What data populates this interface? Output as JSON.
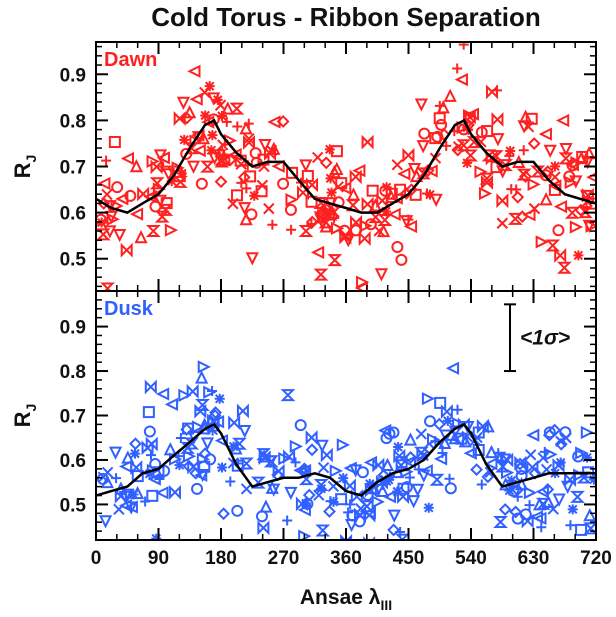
{
  "chart_data": {
    "type": "scatter",
    "title": "Cold Torus - Ribbon Separation",
    "xlabel": "Ansae λ",
    "xlabel_subscript": "III",
    "x_ticks": [
      0,
      90,
      180,
      270,
      360,
      450,
      540,
      630,
      720
    ],
    "xlim": [
      0,
      720
    ],
    "panels": [
      {
        "label": "Dawn",
        "color": "#ff2020",
        "ylabel": "R",
        "ylabel_subscript": "J",
        "ylim": [
          0.43,
          0.97
        ],
        "y_ticks": [
          0.5,
          0.6,
          0.7,
          0.8,
          0.9
        ],
        "mean_curve": {
          "x": [
            0,
            22,
            45,
            67,
            90,
            112,
            135,
            157,
            170,
            180,
            202,
            225,
            247,
            270,
            292,
            315,
            337,
            360,
            382,
            405,
            427,
            450,
            472,
            495,
            517,
            530,
            540,
            562,
            585,
            607,
            630,
            652,
            675,
            697,
            720
          ],
          "y": [
            0.63,
            0.61,
            0.6,
            0.62,
            0.64,
            0.68,
            0.74,
            0.79,
            0.8,
            0.77,
            0.73,
            0.7,
            0.71,
            0.71,
            0.67,
            0.63,
            0.62,
            0.61,
            0.6,
            0.6,
            0.62,
            0.64,
            0.68,
            0.74,
            0.79,
            0.8,
            0.77,
            0.73,
            0.7,
            0.71,
            0.71,
            0.67,
            0.64,
            0.63,
            0.62
          ]
        }
      },
      {
        "label": "Dusk",
        "color": "#3060ff",
        "ylabel": "R",
        "ylabel_subscript": "J",
        "ylim": [
          0.42,
          0.98
        ],
        "y_ticks": [
          0.5,
          0.6,
          0.7,
          0.8,
          0.9
        ],
        "mean_curve": {
          "x": [
            0,
            22,
            45,
            67,
            90,
            112,
            135,
            157,
            170,
            180,
            202,
            225,
            247,
            270,
            292,
            315,
            337,
            360,
            382,
            405,
            427,
            450,
            472,
            495,
            517,
            530,
            540,
            562,
            585,
            607,
            630,
            652,
            675,
            697,
            720
          ],
          "y": [
            0.52,
            0.53,
            0.54,
            0.57,
            0.58,
            0.61,
            0.64,
            0.67,
            0.68,
            0.66,
            0.59,
            0.54,
            0.55,
            0.56,
            0.56,
            0.57,
            0.56,
            0.53,
            0.52,
            0.55,
            0.57,
            0.58,
            0.6,
            0.64,
            0.67,
            0.68,
            0.66,
            0.59,
            0.54,
            0.55,
            0.56,
            0.57,
            0.57,
            0.57,
            0.57
          ]
        },
        "error_bar": {
          "label": "<1σ>",
          "y_low": 0.8,
          "y_high": 0.95
        }
      }
    ]
  }
}
